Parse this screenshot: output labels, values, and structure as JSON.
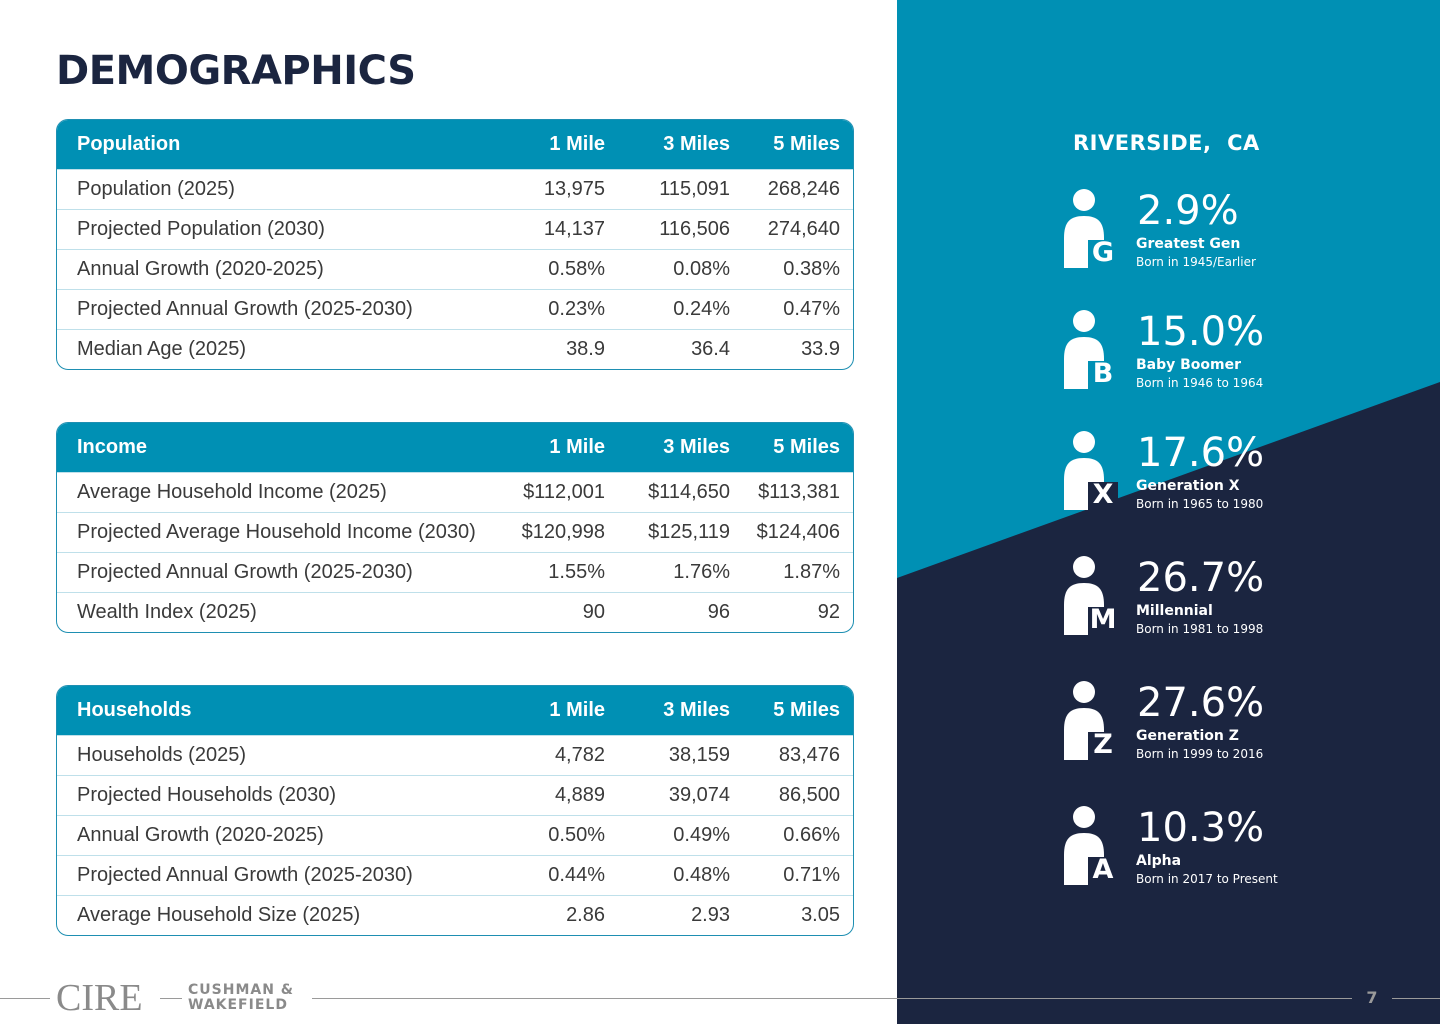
{
  "page": {
    "title": "DEMOGRAPHICS",
    "number": "7"
  },
  "tables": {
    "population": {
      "header": [
        "Population",
        "1 Mile",
        "3 Miles",
        "5 Miles"
      ],
      "rows": [
        [
          "Population (2025)",
          "13,975",
          "115,091",
          "268,246"
        ],
        [
          "Projected Population (2030)",
          "14,137",
          "116,506",
          "274,640"
        ],
        [
          "Annual Growth (2020-2025)",
          "0.58%",
          "0.08%",
          "0.38%"
        ],
        [
          "Projected Annual Growth (2025-2030)",
          "0.23%",
          "0.24%",
          "0.47%"
        ],
        [
          "Median Age (2025)",
          "38.9",
          "36.4",
          "33.9"
        ]
      ]
    },
    "income": {
      "header": [
        "Income",
        "1 Mile",
        "3 Miles",
        "5 Miles"
      ],
      "rows": [
        [
          "Average Household Income (2025)",
          "$112,001",
          "$114,650",
          "$113,381"
        ],
        [
          "Projected Average Household Income (2030)",
          "$120,998",
          "$125,119",
          "$124,406"
        ],
        [
          "Projected Annual Growth (2025-2030)",
          "1.55%",
          "1.76%",
          "1.87%"
        ],
        [
          "Wealth Index (2025)",
          "90",
          "96",
          "92"
        ]
      ]
    },
    "households": {
      "header": [
        "Households",
        "1 Mile",
        "3 Miles",
        "5 Miles"
      ],
      "rows": [
        [
          "Households (2025)",
          "4,782",
          "38,159",
          "83,476"
        ],
        [
          "Projected Households (2030)",
          "4,889",
          "39,074",
          "86,500"
        ],
        [
          "Annual Growth (2020-2025)",
          "0.50%",
          "0.49%",
          "0.66%"
        ],
        [
          "Projected Annual Growth (2025-2030)",
          "0.44%",
          "0.48%",
          "0.71%"
        ],
        [
          "Average Household Size (2025)",
          "2.86",
          "2.93",
          "3.05"
        ]
      ]
    }
  },
  "generations": {
    "location": "RIVERSIDE,  CA",
    "items": [
      {
        "letter": "G",
        "percent": "2.9%",
        "name": "Greatest Gen",
        "born": "Born in 1945/Earlier"
      },
      {
        "letter": "B",
        "percent": "15.0%",
        "name": "Baby Boomer",
        "born": "Born in 1946 to 1964"
      },
      {
        "letter": "X",
        "percent": "17.6%",
        "name": "Generation X",
        "born": "Born in 1965 to 1980"
      },
      {
        "letter": "M",
        "percent": "26.7%",
        "name": "Millennial",
        "born": "Born in 1981 to 1998"
      },
      {
        "letter": "Z",
        "percent": "27.6%",
        "name": "Generation Z",
        "born": "Born in 1999 to 2016"
      },
      {
        "letter": "A",
        "percent": "10.3%",
        "name": "Alpha",
        "born": "Born in 2017 to Present"
      }
    ]
  },
  "footer": {
    "logo_cire": "CIRE",
    "logo_cw_line1": "CUSHMAN &",
    "logo_cw_line2": "WAKEFIELD"
  },
  "colors": {
    "navy": "#1b2540",
    "teal": "#0090b4",
    "header_text": "#ffffff"
  }
}
